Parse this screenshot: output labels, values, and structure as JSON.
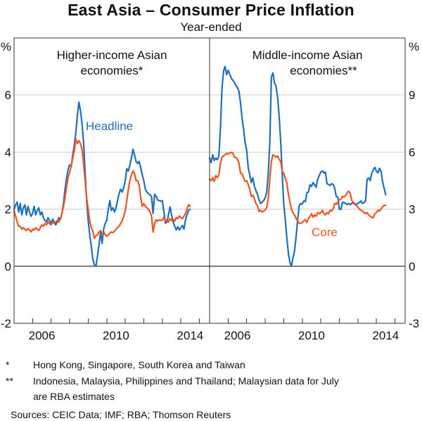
{
  "header": {
    "title": "East Asia – Consumer Price Inflation",
    "subtitle": "Year-ended"
  },
  "footnotes": [
    {
      "marker": "*",
      "text": "Hong Kong, Singapore, South Korea and Taiwan"
    },
    {
      "marker": "**",
      "text": "Indonesia, Malaysia, Philippines and Thailand; Malaysian data for July are RBA estimates"
    }
  ],
  "sources": "Sources:  CEIC Data; IMF; RBA; Thomson Reuters",
  "colors": {
    "headline": "#1E6FBE",
    "core": "#F0541E",
    "grid": "#CCCCCC",
    "zero_line": "#545454",
    "frame": "#333333",
    "text": "#111111"
  },
  "chart_data": [
    {
      "type": "line",
      "panel_title_line1": "Higher-income Asian",
      "panel_title_line2": "economies*",
      "axis_unit": "%",
      "frequency": "monthly",
      "x_start": "2005-01",
      "x_end": "2014-07",
      "xlim": [
        2005,
        2015.55
      ],
      "ylim": [
        -2,
        8
      ],
      "yticks": [
        6,
        4,
        2,
        0,
        -2
      ],
      "xtick_years": [
        2006,
        2007,
        2008,
        2009,
        2010,
        2011,
        2012,
        2013,
        2014,
        2015
      ],
      "xlabels": [
        2006,
        2010,
        2014
      ],
      "grid": true,
      "annotation": {
        "text": "Headline",
        "color_key": "headline"
      },
      "series": [
        {
          "name": "Headline",
          "color_key": "headline",
          "values": [
            2.0,
            2.15,
            2.25,
            1.9,
            2.2,
            1.8,
            2.05,
            2.15,
            1.8,
            2.1,
            1.9,
            1.75,
            1.85,
            2.1,
            1.8,
            1.95,
            2.05,
            1.8,
            1.9,
            1.7,
            1.6,
            1.55,
            1.7,
            1.6,
            1.5,
            1.65,
            1.55,
            1.45,
            1.55,
            1.7,
            1.65,
            1.85,
            2.2,
            2.7,
            3.1,
            3.4,
            3.55,
            3.5,
            3.9,
            4.25,
            4.7,
            5.3,
            5.75,
            5.45,
            5.0,
            4.35,
            3.3,
            2.3,
            1.6,
            1.1,
            0.7,
            0.25,
            0.05,
            0.0,
            0.35,
            0.75,
            1.2,
            0.8,
            1.3,
            1.5,
            1.6,
            2.0,
            2.3,
            1.95,
            2.05,
            1.9,
            2.05,
            2.3,
            2.55,
            2.7,
            2.6,
            2.75,
            3.0,
            3.42,
            3.34,
            3.55,
            3.8,
            4.1,
            3.9,
            3.67,
            3.6,
            3.67,
            3.45,
            3.2,
            3.0,
            2.7,
            2.6,
            2.55,
            2.5,
            2.45,
            1.85,
            2.52,
            2.45,
            2.32,
            2.3,
            2.28,
            2.3,
            1.9,
            1.51,
            1.55,
            1.8,
            2.08,
            1.8,
            1.55,
            1.4,
            1.27,
            1.39,
            1.27,
            1.35,
            1.43,
            1.3,
            1.63,
            1.8,
            1.95,
            2.0
          ]
        },
        {
          "name": "Core",
          "color_key": "core",
          "values": [
            1.95,
            1.75,
            1.55,
            1.4,
            1.39,
            1.3,
            1.35,
            1.3,
            1.25,
            1.32,
            1.27,
            1.2,
            1.3,
            1.27,
            1.35,
            1.3,
            1.25,
            1.35,
            1.45,
            1.4,
            1.5,
            1.45,
            1.55,
            1.5,
            1.45,
            1.55,
            1.5,
            1.55,
            1.6,
            1.55,
            1.65,
            1.85,
            2.1,
            2.4,
            2.8,
            3.1,
            3.3,
            3.5,
            3.8,
            4.05,
            4.45,
            4.3,
            4.4,
            4.3,
            4.1,
            3.6,
            3.0,
            2.4,
            2.0,
            1.6,
            1.35,
            1.23,
            0.98,
            1.07,
            1.1,
            1.2,
            1.25,
            1.15,
            1.2,
            1.1,
            1.05,
            1.1,
            1.15,
            1.2,
            1.18,
            1.22,
            1.3,
            1.35,
            1.4,
            1.5,
            1.6,
            1.75,
            1.95,
            2.3,
            2.7,
            3.0,
            3.2,
            3.34,
            3.25,
            3.0,
            3.0,
            2.85,
            2.4,
            2.1,
            2.2,
            2.1,
            2.05,
            2.0,
            1.9,
            1.76,
            1.2,
            1.5,
            1.63,
            1.58,
            1.63,
            1.6,
            1.62,
            1.71,
            1.58,
            1.63,
            1.55,
            1.67,
            1.6,
            1.65,
            1.58,
            1.71,
            1.67,
            1.76,
            1.7,
            1.67,
            1.75,
            1.85,
            2.0,
            2.16,
            2.1
          ]
        }
      ]
    },
    {
      "type": "line",
      "panel_title_line1": "Middle-income Asian",
      "panel_title_line2": "economies**",
      "axis_unit": "%",
      "frequency": "monthly",
      "x_start": "2005-01",
      "x_end": "2014-07",
      "xlim": [
        2005,
        2015.55
      ],
      "ylim": [
        -3,
        12
      ],
      "yticks": [
        9,
        6,
        3,
        0,
        -3
      ],
      "xtick_years": [
        2006,
        2007,
        2008,
        2009,
        2010,
        2011,
        2012,
        2013,
        2014,
        2015
      ],
      "xlabels": [
        2006,
        2010,
        2014
      ],
      "grid": true,
      "annotation": {
        "text": "Core",
        "color_key": "core"
      },
      "series": [
        {
          "name": "Headline",
          "color_key": "headline",
          "values": [
            5.7,
            5.45,
            5.86,
            5.56,
            5.68,
            5.6,
            5.8,
            7.2,
            9.3,
            10.25,
            10.5,
            10.07,
            10.3,
            10.1,
            9.9,
            9.77,
            9.67,
            9.5,
            9.4,
            9.2,
            8.6,
            7.8,
            7.2,
            6.5,
            6.1,
            5.2,
            4.8,
            4.4,
            4.65,
            4.2,
            3.98,
            3.79,
            3.49,
            3.3,
            3.37,
            3.45,
            3.6,
            3.9,
            4.9,
            6.5,
            9.95,
            10.16,
            9.65,
            9.46,
            8.9,
            7.94,
            6.6,
            4.9,
            3.3,
            2.45,
            1.5,
            0.7,
            0.2,
            0.0,
            0.45,
            0.8,
            1.54,
            2.45,
            3.18,
            3.3,
            3.26,
            3.43,
            3.4,
            3.85,
            3.9,
            4.28,
            4.2,
            4.4,
            4.28,
            4.15,
            4.58,
            4.77,
            4.95,
            5.01,
            4.9,
            4.95,
            4.34,
            4.3,
            4.24,
            4.34,
            4.3,
            4.1,
            3.67,
            3.64,
            3.0,
            2.98,
            3.37,
            3.35,
            3.3,
            3.24,
            3.3,
            3.24,
            3.3,
            3.35,
            3.3,
            3.24,
            3.3,
            3.35,
            3.43,
            3.3,
            3.35,
            3.43,
            4.58,
            4.64,
            4.5,
            4.89,
            5.07,
            5.2,
            5.0,
            4.9,
            5.15,
            5.0,
            4.46,
            4.1,
            3.76
          ]
        },
        {
          "name": "Core",
          "color_key": "core",
          "values": [
            4.58,
            4.5,
            4.65,
            4.46,
            4.77,
            4.65,
            4.8,
            5.38,
            5.74,
            5.8,
            5.86,
            5.93,
            5.9,
            5.95,
            5.99,
            5.95,
            5.74,
            5.72,
            5.62,
            5.44,
            4.89,
            4.87,
            4.65,
            4.46,
            4.5,
            4.3,
            4.04,
            3.67,
            3.73,
            3.55,
            3.3,
            3.18,
            2.88,
            2.94,
            2.85,
            2.9,
            2.95,
            3.1,
            3.6,
            4.6,
            5.5,
            5.86,
            5.8,
            5.74,
            5.8,
            5.62,
            5.5,
            5.0,
            4.89,
            4.6,
            4.4,
            3.79,
            3.37,
            3.0,
            2.8,
            2.7,
            2.51,
            2.39,
            2.27,
            2.25,
            2.3,
            2.39,
            2.45,
            2.3,
            2.51,
            2.63,
            2.76,
            2.57,
            2.7,
            2.63,
            2.82,
            2.76,
            2.82,
            2.94,
            2.76,
            2.7,
            2.82,
            2.76,
            2.94,
            2.9,
            3.0,
            3.3,
            3.26,
            3.37,
            3.49,
            3.52,
            3.67,
            3.64,
            3.7,
            3.85,
            3.95,
            3.85,
            3.49,
            3.3,
            3.26,
            3.2,
            3.12,
            3.0,
            2.94,
            2.9,
            2.82,
            2.76,
            2.82,
            2.7,
            2.63,
            2.57,
            2.55,
            2.76,
            2.82,
            2.94,
            2.9,
            3.0,
            3.12,
            3.2,
            3.2
          ]
        }
      ]
    }
  ]
}
